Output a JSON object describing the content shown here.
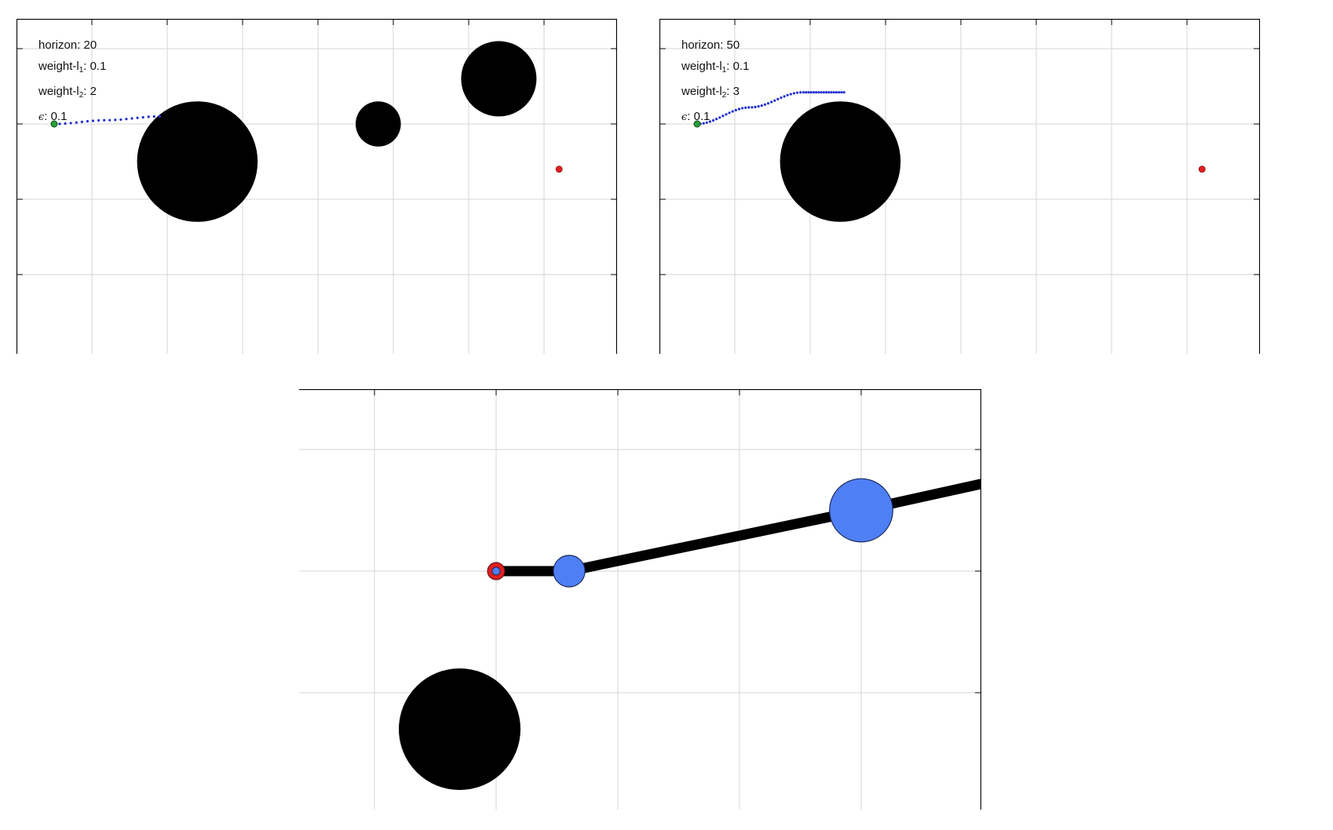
{
  "colors": {
    "obstacle": "#000000",
    "trajectory": "#1f2fcf",
    "start": "#2a9d3a",
    "goal": "#e02020",
    "node": "#4f7ff5",
    "grid": "#d6d6d6",
    "frame": "#000000"
  },
  "panels": [
    {
      "id": "panel-a",
      "labels": {
        "horizon_key": "horizon",
        "horizon_value": "20",
        "weight1_key": "weight-l",
        "weight1_sub": "1",
        "weight1_value": "0.1",
        "weight2_key": "weight-l",
        "weight2_sub": "2",
        "weight2_value": "2",
        "eps_key": "ϵ",
        "eps_value": "0.1"
      },
      "start": [
        0.5,
        3
      ],
      "goal": [
        7.2,
        2.4
      ],
      "obstacles": [
        {
          "x": 2.4,
          "y": 2.5,
          "r": 0.8
        },
        {
          "x": 4.8,
          "y": 3.0,
          "r": 0.3
        },
        {
          "x": 6.4,
          "y": 3.6,
          "r": 0.5
        }
      ],
      "trajectory": {
        "x": [
          0.5,
          1.2,
          1.9
        ],
        "y": [
          3.0,
          3.05,
          3.1
        ],
        "points": 20
      }
    },
    {
      "id": "panel-b",
      "labels": {
        "horizon_key": "horizon",
        "horizon_value": "50",
        "weight1_key": "weight-l",
        "weight1_sub": "1",
        "weight1_value": "0.1",
        "weight2_key": "weight-l",
        "weight2_sub": "2",
        "weight2_value": "3",
        "eps_key": "ϵ",
        "eps_value": "0.1"
      },
      "start": [
        0.5,
        3
      ],
      "goal": [
        7.2,
        2.4
      ],
      "obstacles": [
        {
          "x": 2.4,
          "y": 2.5,
          "r": 0.8
        }
      ],
      "trajectory": {
        "x": [
          0.5,
          1.2,
          1.9,
          2.45
        ],
        "y": [
          3.0,
          3.22,
          3.42,
          3.42
        ],
        "points": 50
      }
    },
    {
      "id": "panel-c",
      "obstacles": [
        {
          "x": 0.7,
          "y": -1.3,
          "r": 0.5
        }
      ],
      "path": [
        [
          1.0,
          0.0
        ],
        [
          1.6,
          0.0
        ],
        [
          4.0,
          0.5
        ],
        [
          5.0,
          0.72
        ]
      ],
      "nodes": [
        {
          "x": 1.6,
          "y": 0.0,
          "r": 0.13
        },
        {
          "x": 4.0,
          "y": 0.5,
          "r": 0.26
        }
      ],
      "start_marker": {
        "x": 1.0,
        "y": 0.0
      }
    }
  ]
}
